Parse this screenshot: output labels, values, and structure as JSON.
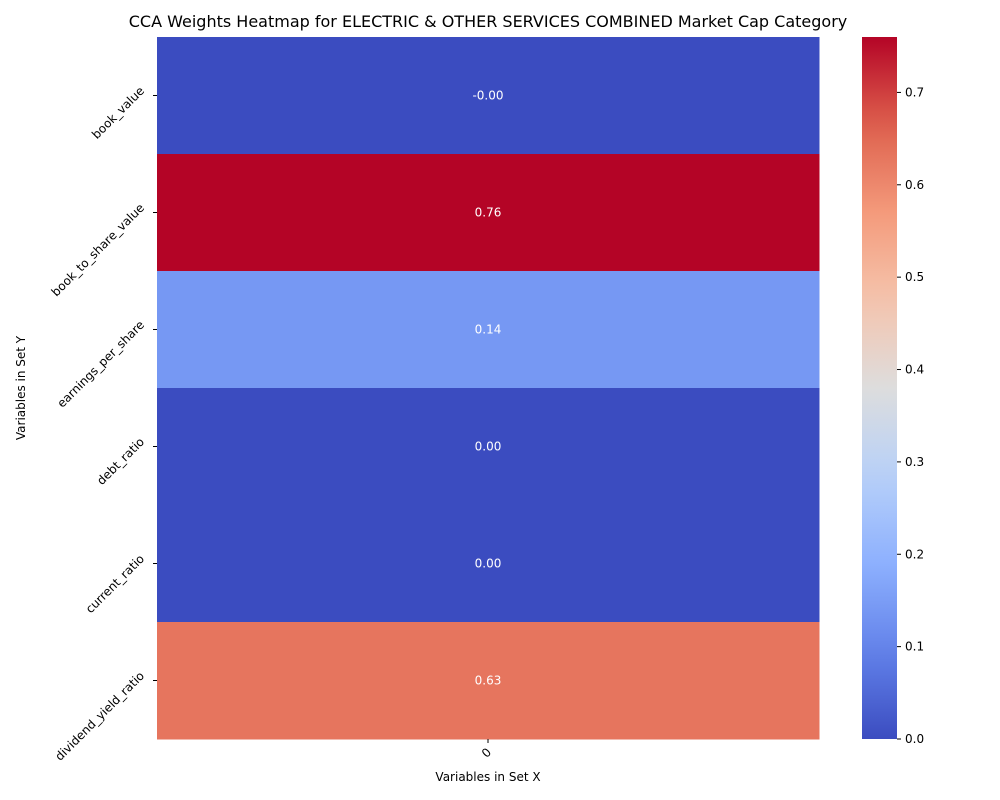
{
  "chart_data": {
    "type": "heatmap",
    "title": "CCA Weights Heatmap for ELECTRIC & OTHER SERVICES COMBINED Market Cap Category",
    "xlabel": "Variables in Set X",
    "ylabel": "Variables in Set Y",
    "x_categories": [
      "0"
    ],
    "y_categories": [
      "book_value",
      "book_to_share_value",
      "earnings_per_share",
      "debt_ratio",
      "current_ratio",
      "dividend_yield_ratio"
    ],
    "values": [
      [
        -0.0
      ],
      [
        0.76
      ],
      [
        0.14
      ],
      [
        0.0
      ],
      [
        0.0
      ],
      [
        0.63
      ]
    ],
    "value_labels": [
      "-0.00",
      "0.76",
      "0.14",
      "0.00",
      "0.00",
      "0.63"
    ],
    "colormap": "coolwarm",
    "color_range": [
      0,
      0.76
    ],
    "colorbar_ticks": [
      0.0,
      0.1,
      0.2,
      0.3,
      0.4,
      0.5,
      0.6,
      0.7
    ],
    "colorbar_tick_labels": [
      "0.0",
      "0.1",
      "0.2",
      "0.3",
      "0.4",
      "0.5",
      "0.6",
      "0.7"
    ],
    "grid": false,
    "legend": "colorbar-right"
  }
}
